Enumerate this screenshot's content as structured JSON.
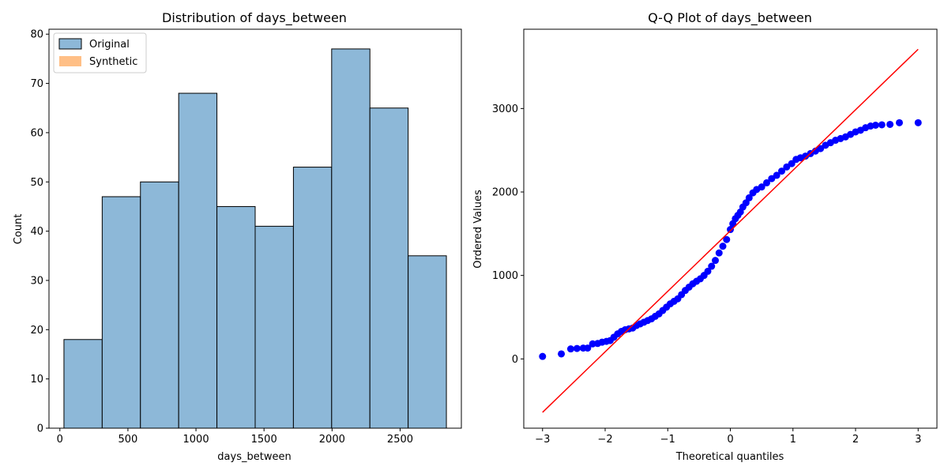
{
  "chart_data": [
    {
      "type": "bar",
      "title": "Distribution of days_between",
      "xlabel": "days_between",
      "ylabel": "Count",
      "xlim": [
        -80,
        2950
      ],
      "ylim": [
        0,
        81
      ],
      "xticks": [
        0,
        500,
        1000,
        1500,
        2000,
        2500
      ],
      "yticks": [
        0,
        10,
        20,
        30,
        40,
        50,
        60,
        70,
        80
      ],
      "bin_edges": [
        30,
        311,
        592,
        873,
        1154,
        1435,
        1716,
        1997,
        2278,
        2559,
        2840
      ],
      "series": [
        {
          "name": "Original",
          "color": "#8db8d8",
          "edgecolor": "#000000",
          "values": [
            18,
            47,
            50,
            68,
            45,
            41,
            53,
            77,
            65,
            35
          ]
        },
        {
          "name": "Synthetic",
          "color": "#ffbf86",
          "values": []
        }
      ],
      "legend_position": "top-left"
    },
    {
      "type": "scatter",
      "title": "Q-Q Plot of days_between",
      "xlabel": "Theoretical quantiles",
      "ylabel": "Ordered Values",
      "xlim": [
        -3.3,
        3.3
      ],
      "ylim": [
        -830,
        3950
      ],
      "xticks": [
        -3,
        -2,
        -1,
        0,
        1,
        2,
        3
      ],
      "yticks": [
        0,
        1000,
        2000,
        3000
      ],
      "point_color": "#0000ff",
      "line_color": "#ff0000",
      "fit_line": {
        "x": [
          -3,
          3
        ],
        "y": [
          -640,
          3710
        ]
      },
      "points": [
        [
          -3.0,
          30
        ],
        [
          -2.7,
          60
        ],
        [
          -2.55,
          120
        ],
        [
          -2.45,
          125
        ],
        [
          -2.35,
          130
        ],
        [
          -2.28,
          130
        ],
        [
          -2.2,
          180
        ],
        [
          -2.12,
          185
        ],
        [
          -2.05,
          200
        ],
        [
          -1.98,
          210
        ],
        [
          -1.92,
          220
        ],
        [
          -1.86,
          260
        ],
        [
          -1.8,
          300
        ],
        [
          -1.74,
          330
        ],
        [
          -1.68,
          350
        ],
        [
          -1.62,
          360
        ],
        [
          -1.56,
          370
        ],
        [
          -1.5,
          400
        ],
        [
          -1.44,
          420
        ],
        [
          -1.38,
          440
        ],
        [
          -1.32,
          460
        ],
        [
          -1.26,
          480
        ],
        [
          -1.2,
          510
        ],
        [
          -1.14,
          540
        ],
        [
          -1.08,
          580
        ],
        [
          -1.02,
          620
        ],
        [
          -0.96,
          660
        ],
        [
          -0.9,
          690
        ],
        [
          -0.84,
          720
        ],
        [
          -0.78,
          770
        ],
        [
          -0.72,
          820
        ],
        [
          -0.66,
          860
        ],
        [
          -0.6,
          900
        ],
        [
          -0.54,
          930
        ],
        [
          -0.48,
          960
        ],
        [
          -0.42,
          1000
        ],
        [
          -0.36,
          1050
        ],
        [
          -0.3,
          1110
        ],
        [
          -0.24,
          1180
        ],
        [
          -0.18,
          1270
        ],
        [
          -0.12,
          1350
        ],
        [
          -0.06,
          1430
        ],
        [
          0.0,
          1550
        ],
        [
          0.04,
          1620
        ],
        [
          0.08,
          1680
        ],
        [
          0.12,
          1720
        ],
        [
          0.16,
          1760
        ],
        [
          0.2,
          1820
        ],
        [
          0.25,
          1870
        ],
        [
          0.3,
          1930
        ],
        [
          0.36,
          1990
        ],
        [
          0.42,
          2030
        ],
        [
          0.5,
          2060
        ],
        [
          0.58,
          2110
        ],
        [
          0.66,
          2160
        ],
        [
          0.74,
          2200
        ],
        [
          0.82,
          2250
        ],
        [
          0.9,
          2300
        ],
        [
          0.98,
          2340
        ],
        [
          1.05,
          2390
        ],
        [
          1.12,
          2410
        ],
        [
          1.2,
          2430
        ],
        [
          1.28,
          2460
        ],
        [
          1.36,
          2490
        ],
        [
          1.44,
          2520
        ],
        [
          1.52,
          2560
        ],
        [
          1.6,
          2590
        ],
        [
          1.68,
          2620
        ],
        [
          1.76,
          2640
        ],
        [
          1.84,
          2660
        ],
        [
          1.92,
          2690
        ],
        [
          2.0,
          2720
        ],
        [
          2.08,
          2740
        ],
        [
          2.16,
          2770
        ],
        [
          2.24,
          2790
        ],
        [
          2.32,
          2800
        ],
        [
          2.42,
          2805
        ],
        [
          2.55,
          2810
        ],
        [
          2.7,
          2830
        ],
        [
          3.0,
          2830
        ]
      ]
    }
  ]
}
